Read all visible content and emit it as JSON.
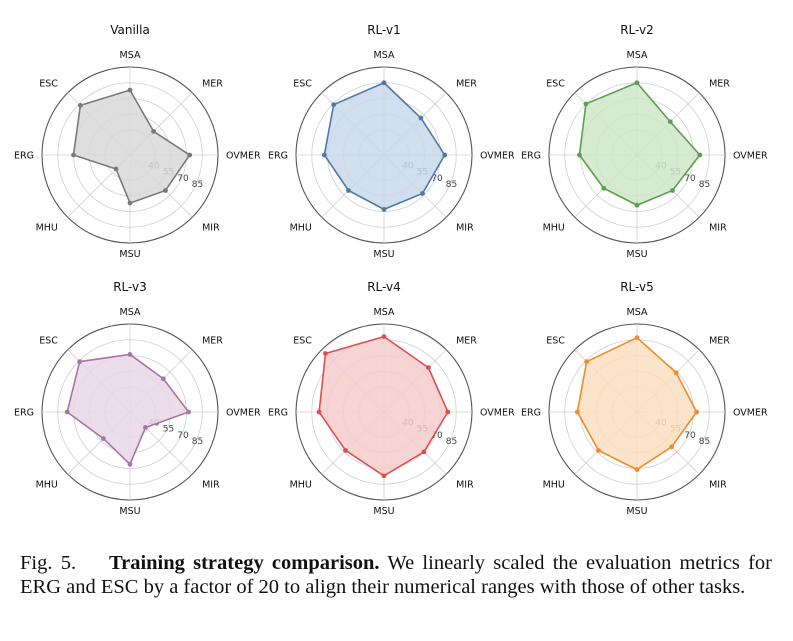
{
  "chart_data": {
    "type": "radar",
    "axes": [
      "MSA",
      "MER",
      "OVMER",
      "MIR",
      "MSU",
      "MHU",
      "ERG",
      "ESC"
    ],
    "rings": [
      40,
      55,
      70,
      85,
      100
    ],
    "tick_labels": [
      "40",
      "55",
      "70",
      "85"
    ],
    "grid": true,
    "panels": [
      {
        "title": "Vanilla",
        "color": "#7a7a7a",
        "fill": "#d8d8d8",
        "values": [
          78,
          48,
          73,
          64,
          62,
          35,
          70,
          83
        ]
      },
      {
        "title": "RL-v1",
        "color": "#4f79a8",
        "fill": "#c9d8ea",
        "values": [
          85,
          66,
          74,
          68,
          68,
          64,
          73,
          84
        ]
      },
      {
        "title": "RL-v2",
        "color": "#5aa04f",
        "fill": "#cfe6c8",
        "values": [
          85,
          61,
          76,
          64,
          64,
          61,
          71,
          85
        ]
      },
      {
        "title": "RL-v3",
        "color": "#a975a6",
        "fill": "#e8d8e6",
        "values": [
          71,
          61,
          72,
          37,
          66,
          52,
          76,
          84
        ]
      },
      {
        "title": "RL-v4",
        "color": "#dc5050",
        "fill": "#f5cccc",
        "values": [
          88,
          76,
          77,
          70,
          77,
          68,
          78,
          95
        ]
      },
      {
        "title": "RL-v5",
        "color": "#ef8c2e",
        "fill": "#fbdfc1",
        "values": [
          87,
          69,
          73,
          63,
          71,
          68,
          73,
          84
        ]
      }
    ]
  },
  "caption": {
    "label": "Fig. 5.",
    "bold": "Training strategy comparison.",
    "text": "We linearly scaled the evaluation metrics for ERG and ESC by a factor of 20 to align their numerical ranges with those of other tasks."
  }
}
